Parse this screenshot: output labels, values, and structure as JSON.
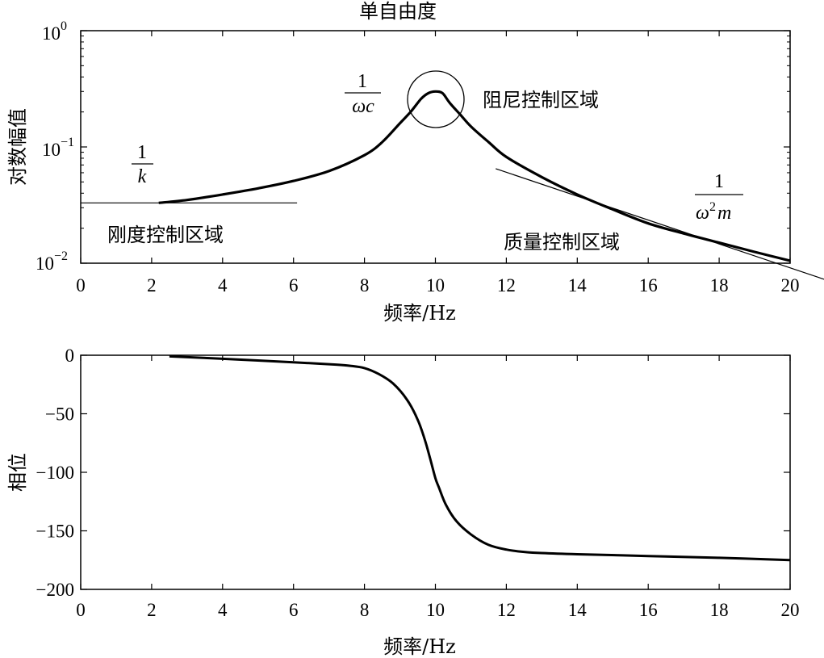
{
  "chart_data": [
    {
      "type": "line",
      "title": "单自由度",
      "xlabel": "频率/Hz",
      "ylabel": "对数幅值",
      "y_scale": "log",
      "xlim": [
        0,
        20
      ],
      "ylim": [
        0.01,
        1
      ],
      "x_ticks": [
        "0",
        "2",
        "4",
        "6",
        "8",
        "10",
        "12",
        "14",
        "16",
        "18",
        "20"
      ],
      "y_ticks": [
        {
          "base": "10",
          "exp": "0",
          "value": 1
        },
        {
          "base": "10",
          "exp": "−1",
          "value": 0.1
        },
        {
          "base": "10",
          "exp": "−2",
          "value": 0.01
        }
      ],
      "series": [
        {
          "x": [
            2.2,
            3,
            4,
            5,
            6,
            7,
            8,
            8.5,
            9,
            9.3,
            9.6,
            9.8,
            10,
            10.2,
            10.4,
            10.7,
            11,
            11.5,
            12,
            13,
            14,
            15,
            16,
            17,
            18,
            19,
            20
          ],
          "y": [
            0.033,
            0.035,
            0.039,
            0.044,
            0.051,
            0.062,
            0.085,
            0.11,
            0.16,
            0.2,
            0.26,
            0.29,
            0.3,
            0.29,
            0.24,
            0.19,
            0.15,
            0.11,
            0.082,
            0.055,
            0.039,
            0.029,
            0.022,
            0.018,
            0.015,
            0.0125,
            0.0105
          ],
          "color": "#000000"
        }
      ],
      "guides": [
        {
          "x": [
            0,
            6.1
          ],
          "y": [
            0.033,
            0.033
          ]
        },
        {
          "x": [
            11.7,
            21
          ],
          "y": [
            0.065,
            0.0072
          ]
        }
      ],
      "annotations": {
        "stiffness_fraction": {
          "num": "1",
          "den": "k"
        },
        "stiffness_region": "刚度控制区域",
        "damping_fraction": {
          "num": "1",
          "den": "ωc"
        },
        "damping_region": "阻尼控制区域",
        "mass_fraction": {
          "num": "1",
          "den_base": "ω",
          "den_sup": "2",
          "den_tail": "m"
        },
        "mass_region": "质量控制区域"
      }
    },
    {
      "type": "line",
      "title": "",
      "xlabel": "频率/Hz",
      "ylabel": "相位",
      "xlim": [
        0,
        20
      ],
      "ylim": [
        -200,
        0
      ],
      "x_ticks": [
        "0",
        "2",
        "4",
        "6",
        "8",
        "10",
        "12",
        "14",
        "16",
        "18",
        "20"
      ],
      "y_ticks": [
        "0",
        "−50",
        "−100",
        "−150",
        "−200"
      ],
      "y_tick_values": [
        0,
        -50,
        -100,
        -150,
        -200
      ],
      "series": [
        {
          "x": [
            2.5,
            4,
            6,
            7.2,
            7.6,
            8,
            8.4,
            8.8,
            9.2,
            9.5,
            9.7,
            9.85,
            10,
            10.1,
            10.3,
            10.6,
            11,
            11.5,
            12,
            12.5,
            13,
            14,
            16,
            18,
            20
          ],
          "y": [
            -1,
            -3,
            -6,
            -8,
            -9,
            -11,
            -16,
            -24,
            -38,
            -55,
            -72,
            -88,
            -105,
            -113,
            -128,
            -142,
            -153,
            -162,
            -166,
            -168,
            -169,
            -170,
            -171.5,
            -173,
            -175
          ],
          "color": "#000000"
        }
      ]
    }
  ]
}
